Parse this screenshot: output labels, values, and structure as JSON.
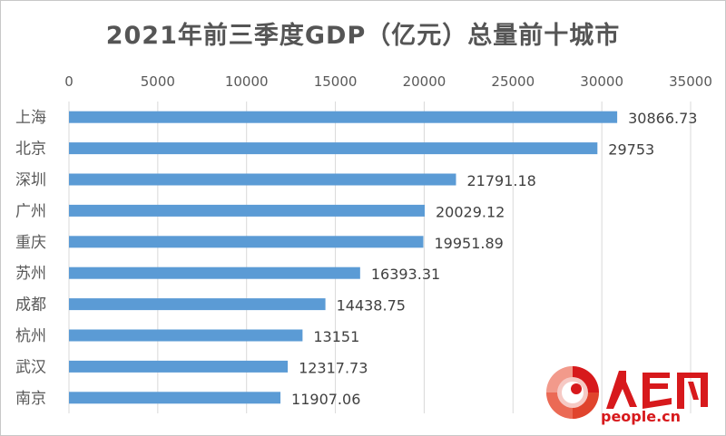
{
  "title": "2021年前三季度GDP（亿元）总量前十城市",
  "chart_data": {
    "type": "bar",
    "orientation": "horizontal",
    "title": "2021年前三季度GDP（亿元）总量前十城市",
    "categories": [
      "上海",
      "北京",
      "深圳",
      "广州",
      "重庆",
      "苏州",
      "成都",
      "杭州",
      "武汉",
      "南京"
    ],
    "values": [
      30866.73,
      29753,
      21791.18,
      20029.12,
      19951.89,
      16393.31,
      14438.75,
      13151,
      12317.73,
      11907.06
    ],
    "value_labels": [
      "30866.73",
      "29753",
      "21791.18",
      "20029.12",
      "19951.89",
      "16393.31",
      "14438.75",
      "13151",
      "12317.73",
      "11907.06"
    ],
    "x_ticks": [
      "0",
      "5000",
      "10000",
      "15000",
      "20000",
      "25000",
      "30000",
      "35000"
    ],
    "xlim": [
      0,
      35000
    ],
    "x_axis_position": "top",
    "grid": true,
    "bar_color": "#5b9bd5",
    "xlabel": "",
    "ylabel": ""
  },
  "logo": {
    "name": "人民网",
    "url_text": "people.cn",
    "primary_color": "#d7191c"
  }
}
